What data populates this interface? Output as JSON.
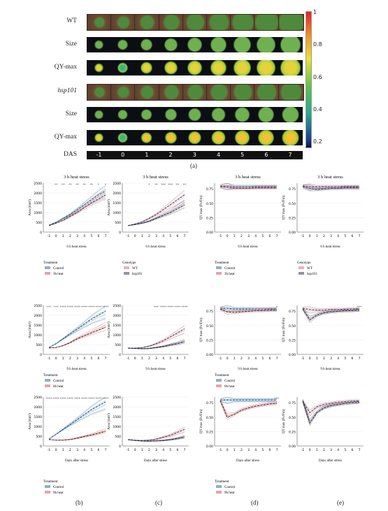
{
  "figure_a": {
    "row_labels": [
      "WT",
      "Size",
      "QY-max",
      "hsp101",
      "Size",
      "QY-max"
    ],
    "das_label": "DAS",
    "days": [
      "-1",
      "0",
      "1",
      "2",
      "3",
      "4",
      "5",
      "6",
      "7"
    ],
    "colorbar_ticks": [
      "1",
      "0.8",
      "0.6",
      "0.4",
      "0.2"
    ],
    "panel_label": "(a)"
  },
  "panel_labels": [
    "(b)",
    "(c)",
    "(d)",
    "(e)"
  ],
  "x_ticks": [
    "-1",
    "0",
    "1",
    "2",
    "3",
    "4",
    "5",
    "6",
    "7"
  ],
  "x_title": "Days after stress",
  "legends": {
    "b1": {
      "title": "Treatment",
      "items": [
        "Control",
        "3h heat"
      ]
    },
    "c1": {
      "title": "Genotype",
      "items": [
        "WT",
        "hsp101"
      ]
    },
    "d1": {
      "title": "Treatment",
      "items": [
        "Control",
        "3h heat"
      ]
    },
    "e1": {
      "title": "Genotype",
      "items": [
        "WT",
        "hsp101"
      ]
    },
    "b2": {
      "title": "Treatment",
      "items": [
        "Control",
        "6h heat"
      ]
    },
    "d2": {
      "title": "Treatment",
      "items": [
        "Control",
        "6h heat"
      ]
    },
    "b3": {
      "title": "Treatment",
      "items": [
        "Control",
        "9h heat"
      ]
    },
    "d3": {
      "title": "Treatment",
      "items": [
        "Control",
        "9h heat"
      ]
    }
  },
  "colors": {
    "control": "#3a7fb0",
    "heat": "#d9656a",
    "wt": "#e07b84",
    "hsp": "#4a4a6a"
  },
  "chart_data": [
    {
      "id": "b1",
      "type": "line",
      "title": "3 h heat stress",
      "ylabel": "Area (mm²)",
      "yticks": [
        0,
        500,
        1000,
        1500,
        2000,
        2500
      ],
      "ylim": [
        0,
        2500
      ],
      "stars": [
        "**",
        "**",
        "**",
        "**",
        "**",
        "**",
        "*",
        "*"
      ],
      "xlabel_below": "6 h heat stress",
      "series": [
        {
          "name": "Control",
          "values": [
            350,
            500,
            700,
            900,
            1150,
            1400,
            1650,
            1900,
            2100
          ]
        },
        {
          "name": "3h heat",
          "values": [
            330,
            450,
            600,
            800,
            1000,
            1250,
            1500,
            1700,
            1900
          ]
        }
      ]
    },
    {
      "id": "c1",
      "type": "line",
      "title": "3 h heat stress",
      "ylabel": "Area (mm²)",
      "yticks": [
        0,
        500,
        1000,
        1500,
        2000,
        2500
      ],
      "ylim": [
        0,
        2500
      ],
      "stars": [
        "*",
        "**",
        "***",
        "***",
        "**",
        "**"
      ],
      "xlabel_below": "6 h heat stress",
      "series": [
        {
          "name": "WT",
          "values": [
            330,
            420,
            520,
            700,
            900,
            1150,
            1400,
            1650,
            1900
          ]
        },
        {
          "name": "hsp101",
          "values": [
            330,
            380,
            450,
            550,
            700,
            850,
            1000,
            1200,
            1400
          ]
        }
      ]
    },
    {
      "id": "d1",
      "type": "line",
      "title": "3 h heat stress",
      "ylabel": "QY max (Fv/Fm)",
      "yticks": [
        "0.00",
        "0.25",
        "0.50",
        "0.75"
      ],
      "ylim": [
        0,
        0.85
      ],
      "stars": [],
      "xlabel_below": "6 h heat stress",
      "series": [
        {
          "name": "Control",
          "values": [
            0.8,
            0.8,
            0.79,
            0.79,
            0.79,
            0.79,
            0.79,
            0.79,
            0.79
          ]
        },
        {
          "name": "3h heat",
          "values": [
            0.79,
            0.78,
            0.76,
            0.76,
            0.76,
            0.77,
            0.77,
            0.77,
            0.77
          ]
        }
      ]
    },
    {
      "id": "e1",
      "type": "line",
      "title": "3 h heat stress",
      "ylabel": "QY max (Fv/Fm)",
      "yticks": [
        "0.00",
        "0.25",
        "0.50",
        "0.75"
      ],
      "ylim": [
        0,
        0.85
      ],
      "stars": [],
      "xlabel_below": "6 h heat stress",
      "series": [
        {
          "name": "WT",
          "values": [
            0.8,
            0.79,
            0.79,
            0.79,
            0.79,
            0.79,
            0.79,
            0.79,
            0.79
          ]
        },
        {
          "name": "hsp101",
          "values": [
            0.79,
            0.76,
            0.74,
            0.75,
            0.76,
            0.76,
            0.77,
            0.77,
            0.77
          ]
        }
      ]
    },
    {
      "id": "b2",
      "type": "line",
      "title": "",
      "ylabel": "Area (mm²)",
      "yticks": [
        0,
        500,
        1000,
        1500,
        2000,
        2500
      ],
      "ylim": [
        0,
        2500
      ],
      "stars": [
        "***",
        "***",
        "****",
        "****",
        "****",
        "****",
        "****",
        "****",
        "****"
      ],
      "xlabel_below": "9 h heat stress",
      "series": [
        {
          "name": "Control",
          "values": [
            350,
            550,
            800,
            1050,
            1300,
            1550,
            1800,
            2000,
            2200
          ]
        },
        {
          "name": "6h heat",
          "values": [
            330,
            350,
            450,
            600,
            800,
            950,
            1100,
            1250,
            1400
          ]
        }
      ]
    },
    {
      "id": "c2",
      "type": "line",
      "title": "",
      "ylabel": "Area (mm²)",
      "yticks": [
        0,
        500,
        1000,
        1500,
        2000,
        2500
      ],
      "ylim": [
        0,
        2500
      ],
      "stars": [
        "***",
        "****",
        "****",
        "****",
        "****"
      ],
      "xlabel_below": "9 h heat stress",
      "series": [
        {
          "name": "WT",
          "values": [
            330,
            320,
            350,
            420,
            550,
            700,
            900,
            1100,
            1300
          ]
        },
        {
          "name": "hsp101",
          "values": [
            320,
            300,
            290,
            300,
            350,
            400,
            480,
            550,
            650
          ]
        }
      ]
    },
    {
      "id": "d2",
      "type": "line",
      "title": "",
      "ylabel": "QY max (Fv/Fm)",
      "yticks": [
        "0.00",
        "0.25",
        "0.50",
        "0.75"
      ],
      "ylim": [
        0,
        0.85
      ],
      "stars": [
        "*"
      ],
      "xlabel_below": "9 h heat stress",
      "series": [
        {
          "name": "Control",
          "values": [
            0.8,
            0.8,
            0.79,
            0.79,
            0.79,
            0.79,
            0.79,
            0.79,
            0.79
          ]
        },
        {
          "name": "6h heat",
          "values": [
            0.79,
            0.74,
            0.73,
            0.74,
            0.75,
            0.76,
            0.76,
            0.77,
            0.77
          ]
        }
      ]
    },
    {
      "id": "e2",
      "type": "line",
      "title": "",
      "ylabel": "QY max (Fv/Fm)",
      "yticks": [
        "0.00",
        "0.25",
        "0.50",
        "0.75"
      ],
      "ylim": [
        0,
        0.85
      ],
      "stars": [
        "***"
      ],
      "xlabel_below": "9 h heat stress",
      "series": [
        {
          "name": "WT",
          "values": [
            0.8,
            0.78,
            0.77,
            0.77,
            0.78,
            0.78,
            0.78,
            0.79,
            0.79
          ]
        },
        {
          "name": "hsp101",
          "values": [
            0.79,
            0.6,
            0.68,
            0.72,
            0.74,
            0.75,
            0.76,
            0.76,
            0.77
          ]
        }
      ]
    },
    {
      "id": "b3",
      "type": "line",
      "title": "",
      "ylabel": "Area (mm²)",
      "yticks": [
        0,
        500,
        1000,
        1500,
        2000,
        2500
      ],
      "ylim": [
        0,
        2500
      ],
      "stars": [
        "****",
        "****",
        "****",
        "****",
        "****",
        "****",
        "****",
        "****",
        "****"
      ],
      "xlabel_below": "Days after stress",
      "series": [
        {
          "name": "Control",
          "values": [
            350,
            600,
            850,
            1100,
            1350,
            1600,
            1850,
            2050,
            2250
          ]
        },
        {
          "name": "9h heat",
          "values": [
            330,
            300,
            300,
            330,
            400,
            480,
            560,
            650,
            750
          ]
        }
      ]
    },
    {
      "id": "c3",
      "type": "line",
      "title": "",
      "ylabel": "Area (mm²)",
      "yticks": [
        0,
        500,
        1000,
        1500,
        2000,
        2500
      ],
      "ylim": [
        0,
        2500
      ],
      "stars": [],
      "xlabel_below": "Days after stress",
      "series": [
        {
          "name": "WT",
          "values": [
            330,
            300,
            280,
            300,
            350,
            450,
            550,
            700,
            850
          ]
        },
        {
          "name": "hsp101",
          "values": [
            320,
            280,
            250,
            240,
            260,
            280,
            320,
            380,
            450
          ]
        }
      ]
    },
    {
      "id": "d3",
      "type": "line",
      "title": "",
      "ylabel": "QY max (Fv/Fm)",
      "yticks": [
        "0.00",
        "0.25",
        "0.50",
        "0.75"
      ],
      "ylim": [
        0,
        0.85
      ],
      "stars": [
        "***"
      ],
      "xlabel_below": "Days after stress",
      "series": [
        {
          "name": "Control",
          "values": [
            0.8,
            0.8,
            0.8,
            0.8,
            0.8,
            0.8,
            0.8,
            0.8,
            0.8
          ]
        },
        {
          "name": "9h heat",
          "values": [
            0.79,
            0.5,
            0.55,
            0.62,
            0.66,
            0.69,
            0.71,
            0.73,
            0.74
          ]
        }
      ]
    },
    {
      "id": "e3",
      "type": "line",
      "title": "",
      "ylabel": "QY max (Fv/Fm)",
      "yticks": [
        "0.00",
        "0.25",
        "0.50",
        "0.75"
      ],
      "ylim": [
        0,
        0.85
      ],
      "stars": [],
      "xlabel_below": "Days after stress",
      "series": [
        {
          "name": "WT",
          "values": [
            0.78,
            0.58,
            0.68,
            0.72,
            0.74,
            0.76,
            0.77,
            0.78,
            0.78
          ]
        },
        {
          "name": "hsp101",
          "values": [
            0.78,
            0.4,
            0.58,
            0.66,
            0.7,
            0.72,
            0.74,
            0.75,
            0.76
          ]
        }
      ]
    }
  ]
}
